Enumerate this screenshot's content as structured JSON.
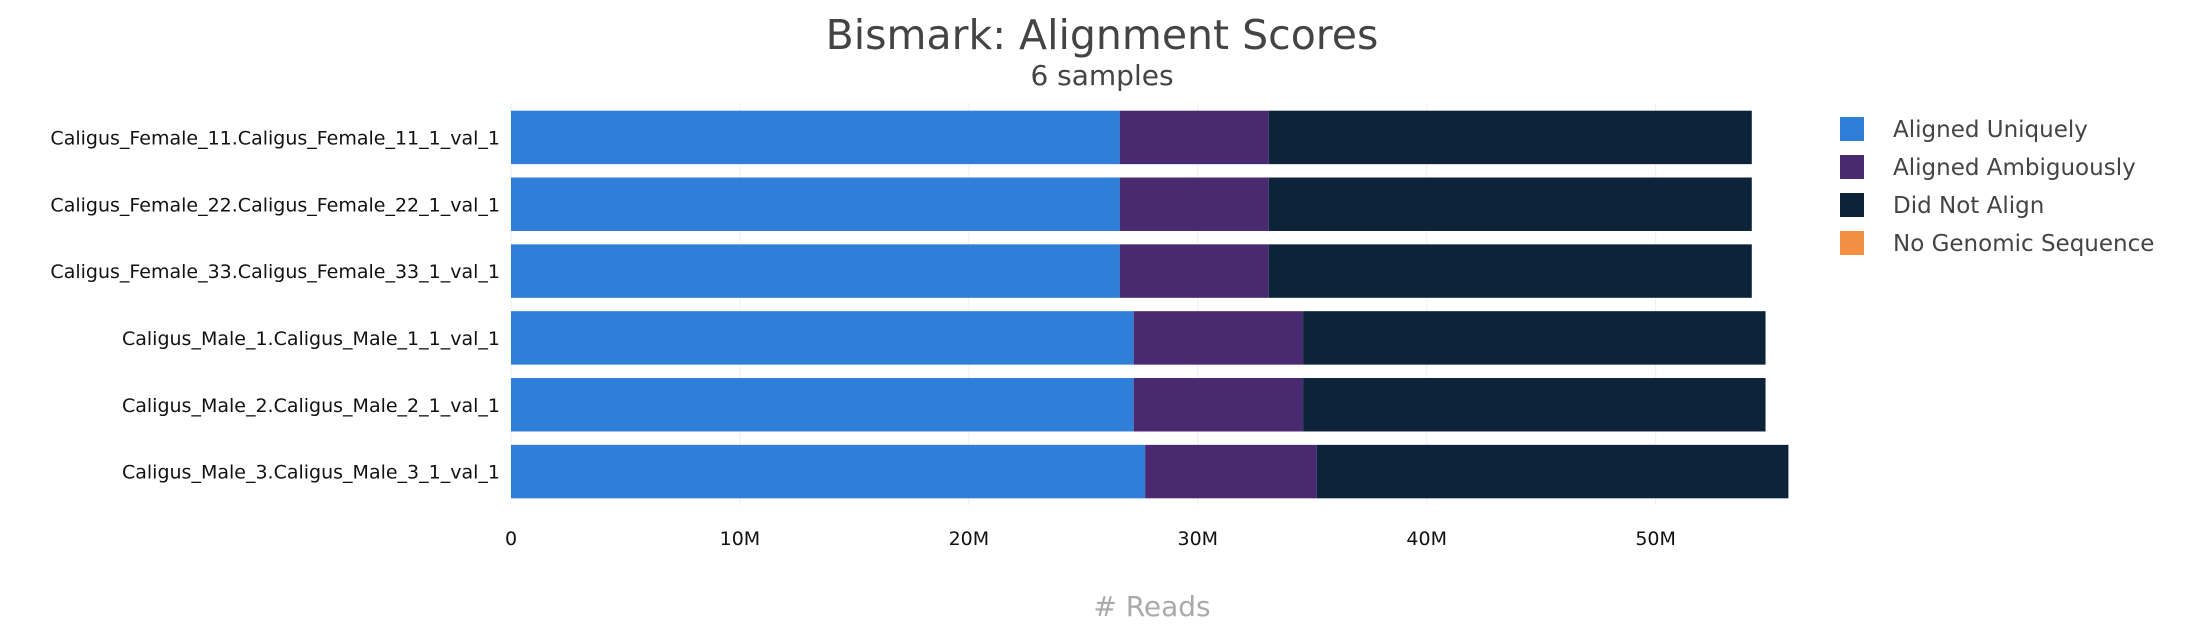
{
  "chart_data": {
    "type": "bar",
    "orientation": "horizontal",
    "stacked": true,
    "title": "Bismark: Alignment Scores",
    "subtitle": "6 samples",
    "xlabel": "# Reads",
    "ylabel": "",
    "xlim": [
      0,
      56000000
    ],
    "x_ticks": [
      0,
      10000000,
      20000000,
      30000000,
      40000000,
      50000000
    ],
    "x_tick_labels": [
      "0",
      "10M",
      "20M",
      "30M",
      "40M",
      "50M"
    ],
    "grid": true,
    "legend_position": "right",
    "categories": [
      "Caligus_Female_11.Caligus_Female_11_1_val_1",
      "Caligus_Female_22.Caligus_Female_22_1_val_1",
      "Caligus_Female_33.Caligus_Female_33_1_val_1",
      "Caligus_Male_1.Caligus_Male_1_1_val_1",
      "Caligus_Male_2.Caligus_Male_2_1_val_1",
      "Caligus_Male_3.Caligus_Male_3_1_val_1"
    ],
    "series": [
      {
        "name": "Aligned Uniquely",
        "color": "#2f7ed8",
        "values": [
          26600000,
          26600000,
          26600000,
          27200000,
          27200000,
          27700000
        ]
      },
      {
        "name": "Aligned Ambiguously",
        "color": "#492970",
        "values": [
          6500000,
          6500000,
          6500000,
          7400000,
          7400000,
          7500000
        ]
      },
      {
        "name": "Did Not Align",
        "color": "#0d233a",
        "values": [
          21100000,
          21100000,
          21100000,
          20200000,
          20200000,
          20600000
        ]
      },
      {
        "name": "No Genomic Sequence",
        "color": "#f28f43",
        "values": [
          0,
          0,
          0,
          0,
          0,
          0
        ]
      }
    ]
  }
}
